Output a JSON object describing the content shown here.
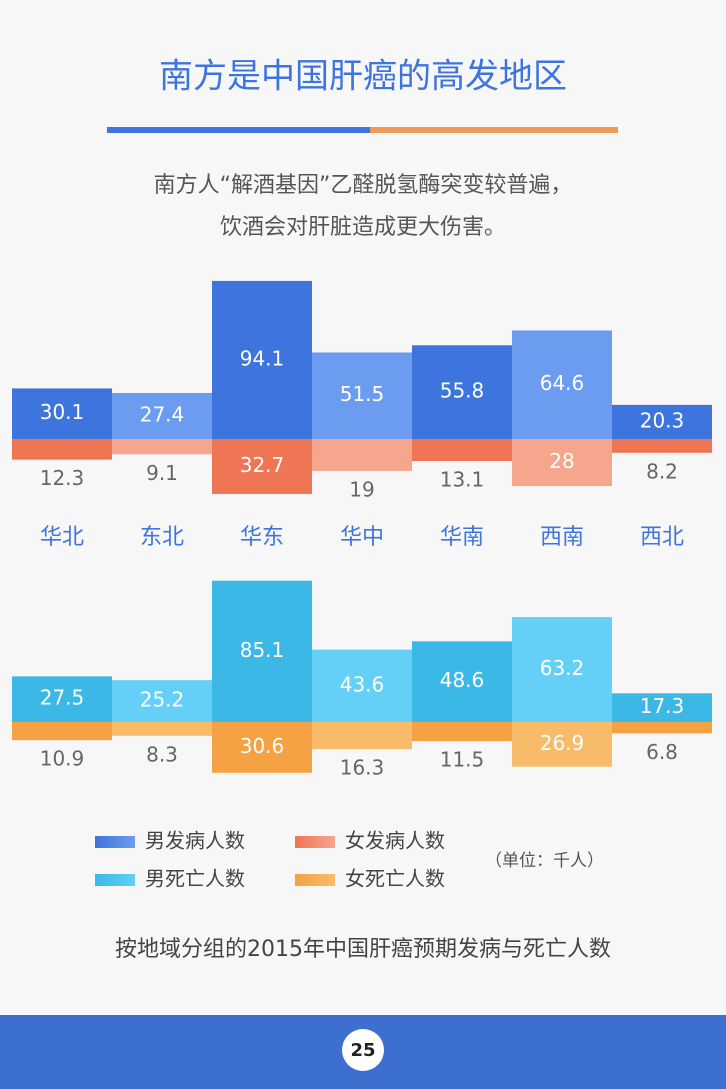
{
  "title": "南方是中国肝癌的高发地区",
  "subtitle": [
    "南方人“解酒基因”乙醛脱氢酶突变较普遍，",
    "饮酒会对肝脏造成更大伤害。"
  ],
  "unit": "（单位：千人）",
  "caption": "按地域分组的2015年中国肝癌预期发病与死亡人数",
  "page_number": 25,
  "chart_data": [
    {
      "type": "bar",
      "categories": [
        "华北",
        "东北",
        "华东",
        "华中",
        "华南",
        "西南",
        "西北"
      ],
      "series": [
        {
          "name": "男发病人数",
          "colors": [
            "#3e74dd",
            "#6c9cef",
            "#3e74dd",
            "#6c9cef",
            "#3e74dd",
            "#6c9cef",
            "#3e74dd"
          ],
          "values": [
            30.1,
            27.4,
            94.1,
            51.5,
            55.8,
            64.6,
            20.3
          ]
        },
        {
          "name": "女发病人数",
          "colors": [
            "#ef7654",
            "#f6a68c",
            "#ef7654",
            "#f6a68c",
            "#ef7654",
            "#f6a68c",
            "#ef7654"
          ],
          "values": [
            12.3,
            9.1,
            32.7,
            19,
            13.1,
            28,
            8.2
          ]
        }
      ]
    },
    {
      "type": "bar",
      "series": [
        {
          "name": "男死亡人数",
          "colors": [
            "#3bb8e6",
            "#64d0f8",
            "#3bb8e6",
            "#64d0f8",
            "#3bb8e6",
            "#64d0f8",
            "#3bb8e6"
          ],
          "values": [
            27.5,
            25.2,
            85.1,
            43.6,
            48.6,
            63.2,
            17.3
          ]
        },
        {
          "name": "女死亡人数",
          "colors": [
            "#f4a244",
            "#f8bb6a",
            "#f4a244",
            "#f8bb6a",
            "#f4a244",
            "#f8bb6a",
            "#f4a244"
          ],
          "values": [
            10.9,
            8.3,
            30.6,
            16.3,
            11.5,
            26.9,
            6.8
          ]
        }
      ]
    }
  ]
}
